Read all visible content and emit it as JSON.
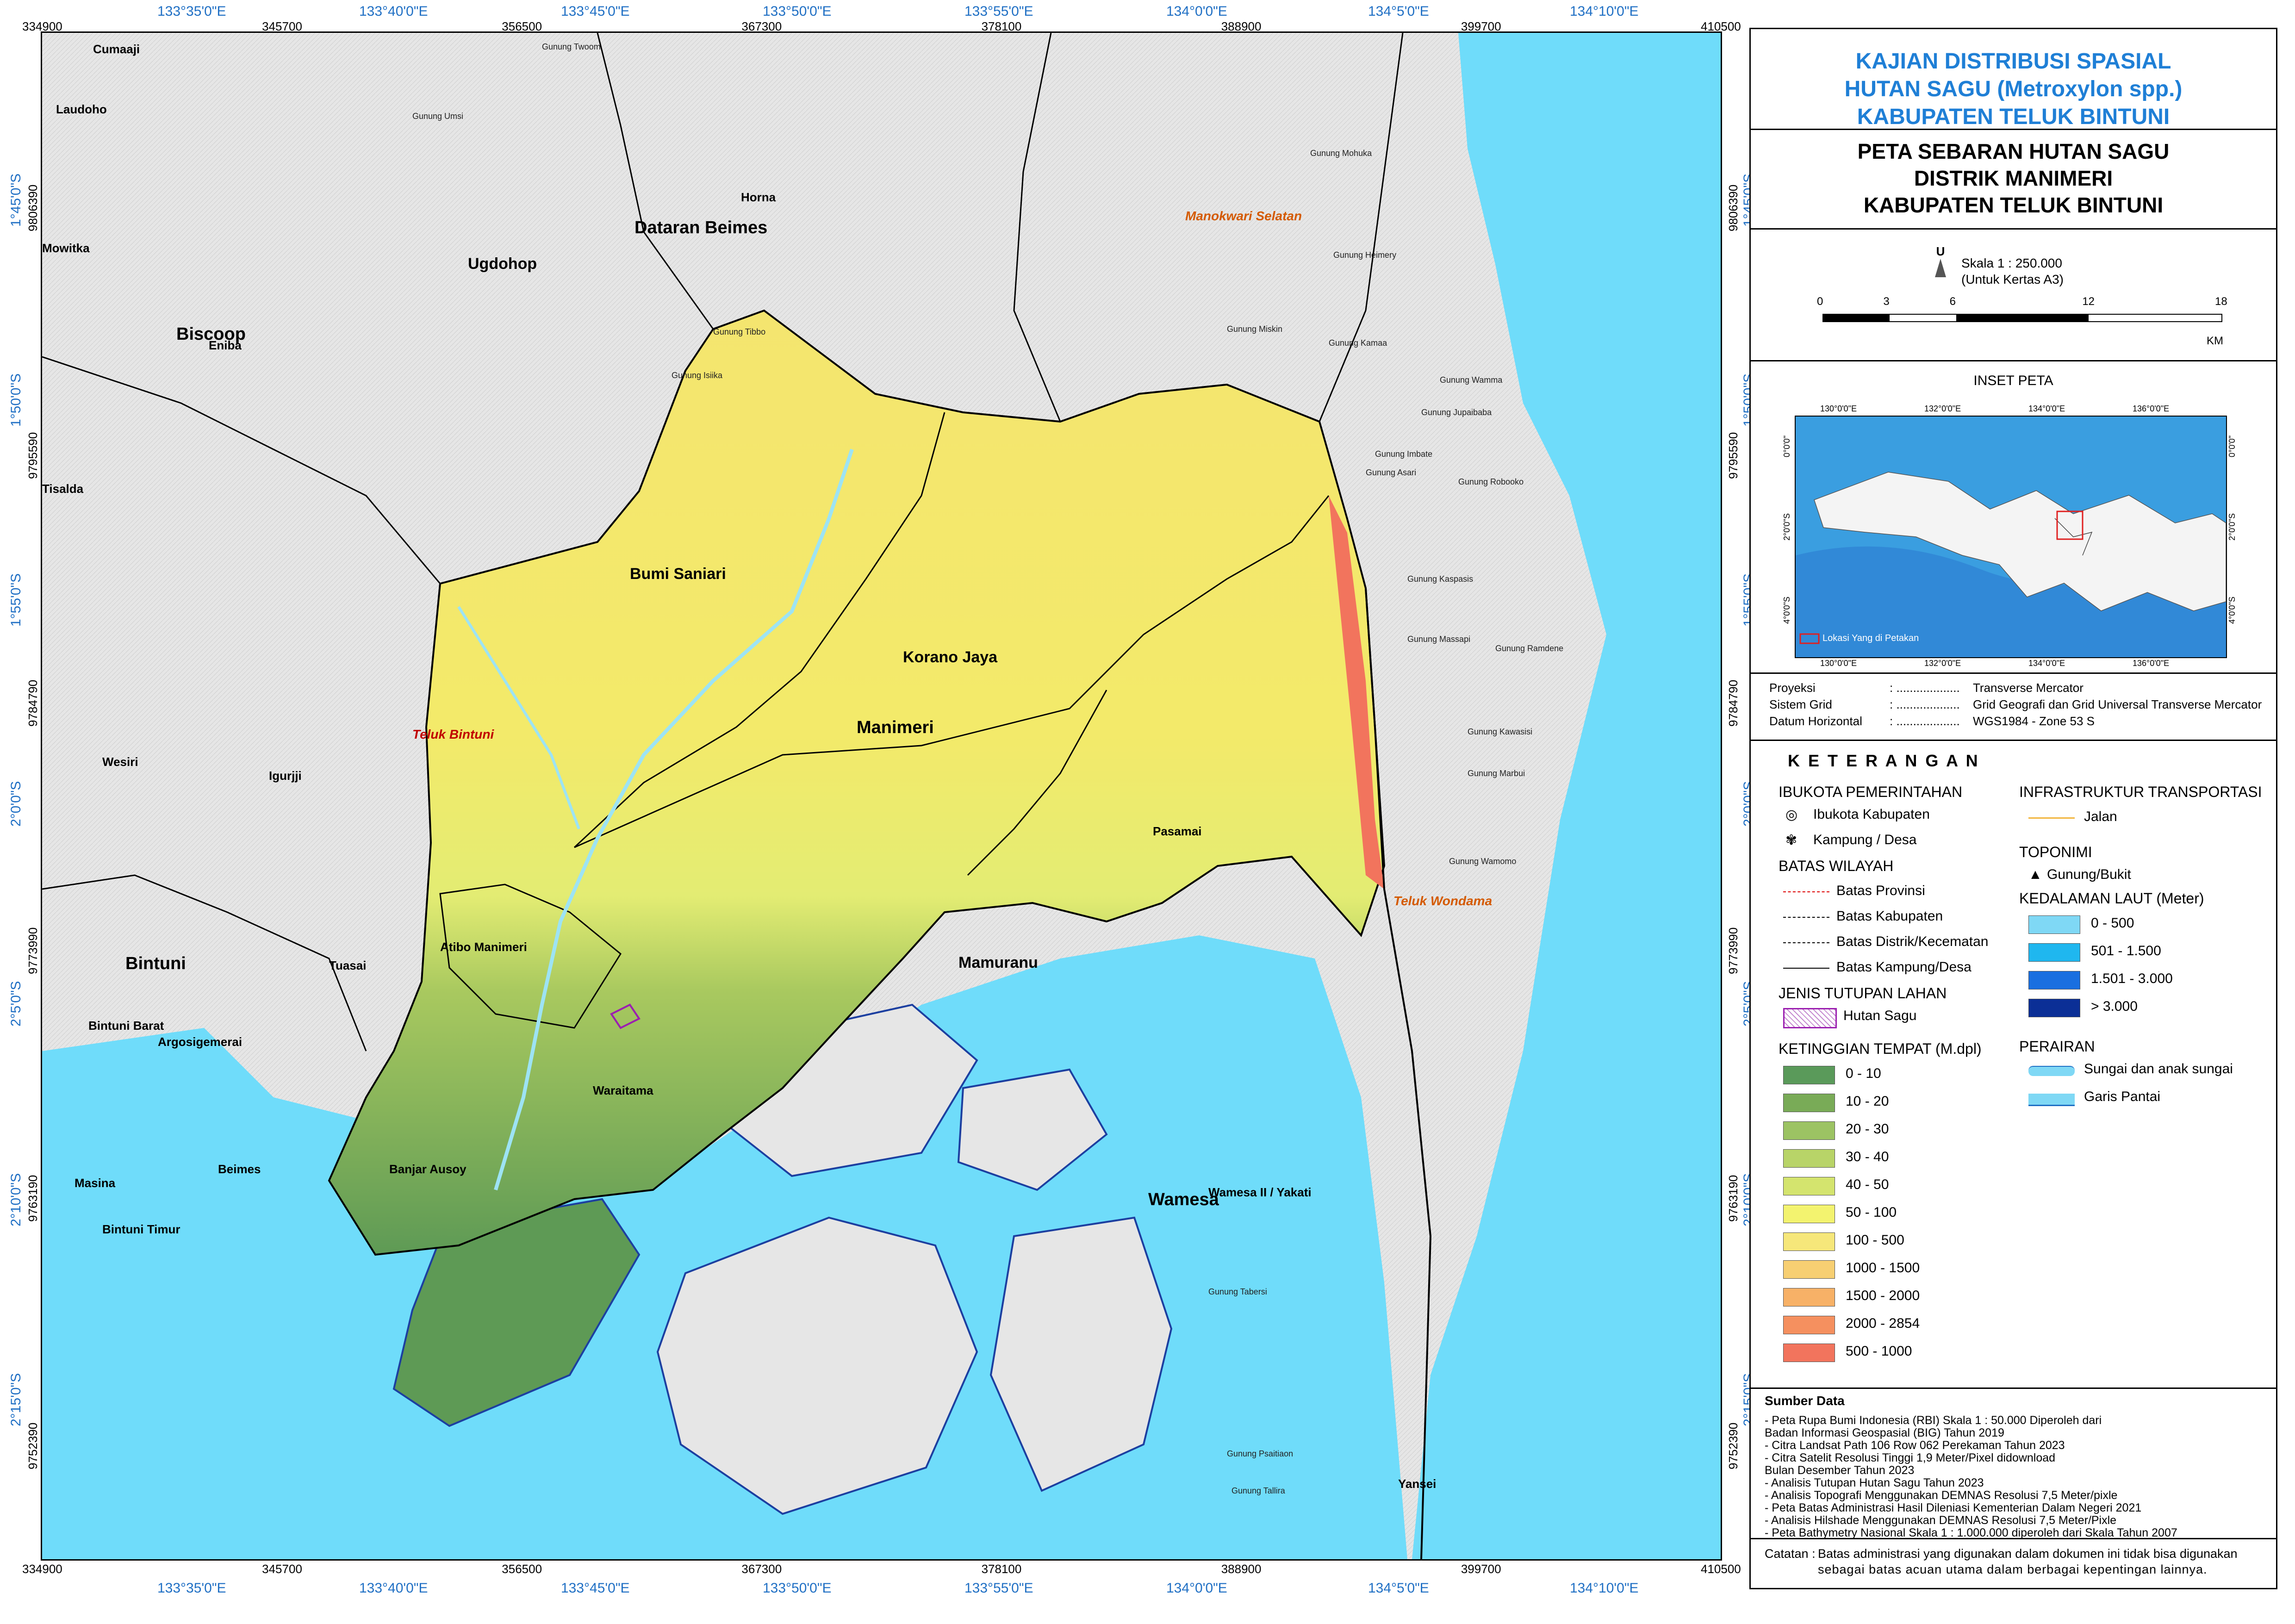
{
  "title": {
    "line1": "KAJIAN DISTRIBUSI SPASIAL",
    "line2": "HUTAN SAGU (Metroxylon spp.)",
    "line3": "KABUPATEN TELUK BINTUNI"
  },
  "subtitle": {
    "line1": "PETA SEBARAN HUTAN SAGU",
    "line2": "DISTRIK MANIMERI",
    "line3": "KABUPATEN TELUK BINTUNI"
  },
  "north_arrow": {
    "letter": "U",
    "icon": "north-arrow-icon"
  },
  "scale": {
    "text": "Skala 1 : 250.000",
    "paper": "(Untuk Kertas A3)",
    "ticks": [
      "0",
      "3",
      "6",
      "12",
      "18"
    ],
    "unit": "KM"
  },
  "inset": {
    "title": "INSET PETA",
    "top_ticks": [
      "130°0'0\"E",
      "132°0'0\"E",
      "134°0'0\"E",
      "136°0'0\"E"
    ],
    "bottom_ticks": [
      "130°0'0\"E",
      "132°0'0\"E",
      "134°0'0\"E",
      "136°0'0\"E"
    ],
    "left_ticks": [
      "0°0'0\"",
      "2°0'0\"S",
      "4°0'0\"S"
    ],
    "right_ticks": [
      "0°0'0\"",
      "2°0'0\"S",
      "4°0'0\"S"
    ],
    "location_label": "Lokasi Yang di Petakan"
  },
  "projection": {
    "rows": [
      {
        "k": "Proyeksi",
        "v": "Transverse Mercator"
      },
      {
        "k": "Sistem Grid",
        "v": "Grid Geografi dan Grid Universal Transverse Mercator"
      },
      {
        "k": "Datum Horizontal",
        "v": "WGS1984 - Zone 53 S"
      }
    ]
  },
  "legend": {
    "title": "K E T E R A N G A N",
    "ibukota": {
      "header": "IBUKOTA PEMERINTAHAN",
      "items": [
        "Ibukota Kabupaten",
        "Kampung / Desa"
      ]
    },
    "batas": {
      "header": "BATAS WILAYAH",
      "items": [
        "Batas Provinsi",
        "Batas Kabupaten",
        "Batas Distrik/Kecematan",
        "Batas Kampung/Desa"
      ]
    },
    "tutupan": {
      "header": "JENIS TUTUPAN LAHAN",
      "items": [
        "Hutan Sagu"
      ]
    },
    "ketinggian": {
      "header": "KETINGGIAN TEMPAT (M.dpl)",
      "items": [
        {
          "label": "0 - 10",
          "color": "#5a9a5a"
        },
        {
          "label": "10 - 20",
          "color": "#79ab57"
        },
        {
          "label": "20 - 30",
          "color": "#9cc363"
        },
        {
          "label": "30 - 40",
          "color": "#b8d468"
        },
        {
          "label": "40 - 50",
          "color": "#d4e46e"
        },
        {
          "label": "50 - 100",
          "color": "#f3f36f"
        },
        {
          "label": "100 - 500",
          "color": "#f6e77a"
        },
        {
          "label": "1000 - 1500",
          "color": "#f7cf72"
        },
        {
          "label": "1500 - 2000",
          "color": "#f7b167"
        },
        {
          "label": "2000 - 2854",
          "color": "#f5905f"
        },
        {
          "label": "500 - 1000",
          "color": "#f2745d"
        }
      ]
    },
    "infrastruktur": {
      "header": "INFRASTRUKTUR TRANSPORTASI",
      "items": [
        "Jalan"
      ]
    },
    "toponimi": {
      "header": "TOPONIMI",
      "items": [
        "Gunung/Bukit"
      ]
    },
    "kedalaman": {
      "header": "KEDALAMAN LAUT (Meter)",
      "items": [
        {
          "label": "0 - 500",
          "color": "#7fd8f5"
        },
        {
          "label": "501 - 1.500",
          "color": "#1fb7ef"
        },
        {
          "label": "1.501 - 3.000",
          "color": "#1a6fe0"
        },
        {
          "label": "> 3.000",
          "color": "#0b2f96"
        }
      ]
    },
    "perairan": {
      "header": "PERAIRAN",
      "items": [
        "Sungai dan anak sungai",
        "Garis Pantai"
      ]
    }
  },
  "sources": {
    "header": "Sumber Data",
    "items": [
      "- Peta Rupa Bumi Indonesia (RBI) Skala 1 : 50.000 Diperoleh dari",
      "  Badan Informasi Geospasial (BIG) Tahun 2019",
      "- Citra Landsat Path 106 Row 062 Perekaman Tahun 2023",
      "- Citra Satelit Resolusi Tinggi 1,9 Meter/Pixel didownload",
      "  Bulan Desember Tahun 2023",
      "- Analisis Tutupan Hutan Sagu Tahun 2023",
      "- Analisis Topografi Menggunakan DEMNAS Resolusi 7,5 Meter/pixle",
      "- Peta Batas Administrasi Hasil Dileniasi Kementerian Dalam Negeri 2021",
      "- Analisis Hilshade Menggunakan DEMNAS Resolusi 7,5 Meter/Pixle",
      "- Peta Bathymetry Nasional Skala 1 : 1.000.000 diperoleh dari Skala Tahun 2007"
    ]
  },
  "note": {
    "label": "Catatan :",
    "text1": "Batas administrasi yang digunakan dalam dokumen ini tidak bisa digunakan",
    "text2": "sebagai batas acuan utama dalam berbagai kepentingan lainnya."
  },
  "grid": {
    "utm_x": [
      "334900",
      "345700",
      "356500",
      "367300",
      "378100",
      "388900",
      "399700",
      "410500"
    ],
    "geo_x": [
      "133°35'0\"E",
      "133°40'0\"E",
      "133°45'0\"E",
      "133°50'0\"E",
      "133°55'0\"E",
      "134°0'0\"E",
      "134°5'0\"E",
      "134°10'0\"E"
    ],
    "utm_y": [
      "9806390",
      "9795590",
      "9784790",
      "9773990",
      "9763190",
      "9752390"
    ],
    "geo_y": [
      "1°45'0\"S",
      "1°50'0\"S",
      "1°55'0\"S",
      "2°0'0\"S",
      "2°5'0\"S",
      "2°10'0\"S",
      "2°15'0\"S"
    ]
  },
  "map_labels": {
    "districts": [
      {
        "name": "Dataran Beimes"
      },
      {
        "name": "Horna"
      },
      {
        "name": "Ugdohop"
      },
      {
        "name": "Biscoop"
      },
      {
        "name": "Eniba"
      },
      {
        "name": "Laudoho"
      },
      {
        "name": "Mowitka"
      },
      {
        "name": "Tisalda"
      },
      {
        "name": "Bumi Saniari"
      },
      {
        "name": "Korano Jaya"
      },
      {
        "name": "Manimeri"
      },
      {
        "name": "Pasamai"
      },
      {
        "name": "Wesiri"
      },
      {
        "name": "Igurjji"
      },
      {
        "name": "Bintuni"
      },
      {
        "name": "Bintuni Barat"
      },
      {
        "name": "Tuasai"
      },
      {
        "name": "Atibo Manimeri"
      },
      {
        "name": "Argosigemerai"
      },
      {
        "name": "Waraitama"
      },
      {
        "name": "Banjar Ausoy"
      },
      {
        "name": "Beimes"
      },
      {
        "name": "Masina"
      },
      {
        "name": "Bintuni Timur"
      },
      {
        "name": "Mamuranu"
      },
      {
        "name": "Wamesa"
      },
      {
        "name": "Wamesa II / Yakati"
      },
      {
        "name": "Yansei"
      },
      {
        "name": "Cumaaji"
      }
    ],
    "red": [
      "Teluk Bintuni"
    ],
    "orange": [
      "Manokwari Selatan",
      "Teluk Wondama"
    ],
    "mountains": [
      "Gunung Tibbo",
      "Gunung Isiika",
      "Gunung Mohuka",
      "Gunung Heimery",
      "Gunung Miskin",
      "Gunung Kamaa",
      "Gunung Wamma",
      "Gunung Jupaibaba",
      "Gunung Imbate",
      "Gunung Asari",
      "Gunung Robooko",
      "Gunung Kaspasis",
      "Gunung Massapi",
      "Gunung Ramdene",
      "Gunung Kawasisi",
      "Gunung Marbui",
      "Gunung Wamomo",
      "Gunung Tabersi",
      "Gunung Psaitiaon",
      "Gunung Tallira",
      "Gunung Umsi",
      "Gunung Twoom"
    ]
  }
}
